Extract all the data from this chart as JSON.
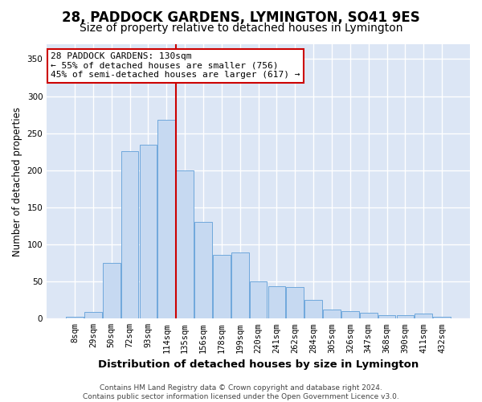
{
  "title": "28, PADDOCK GARDENS, LYMINGTON, SO41 9ES",
  "subtitle": "Size of property relative to detached houses in Lymington",
  "xlabel": "Distribution of detached houses by size in Lymington",
  "ylabel": "Number of detached properties",
  "bar_labels": [
    "8sqm",
    "29sqm",
    "50sqm",
    "72sqm",
    "93sqm",
    "114sqm",
    "135sqm",
    "156sqm",
    "178sqm",
    "199sqm",
    "220sqm",
    "241sqm",
    "262sqm",
    "284sqm",
    "305sqm",
    "326sqm",
    "347sqm",
    "368sqm",
    "390sqm",
    "411sqm",
    "432sqm"
  ],
  "bar_values": [
    2,
    9,
    75,
    226,
    234,
    268,
    200,
    130,
    86,
    89,
    50,
    44,
    43,
    25,
    12,
    10,
    8,
    5,
    5,
    7,
    2
  ],
  "bar_color": "#c6d9f1",
  "bar_edge_color": "#6fa8dc",
  "vline_color": "#cc0000",
  "vline_index": 6,
  "annotation_line1": "28 PADDOCK GARDENS: 130sqm",
  "annotation_line2": "← 55% of detached houses are smaller (756)",
  "annotation_line3": "45% of semi-detached houses are larger (617) →",
  "annotation_box_color": "#ffffff",
  "annotation_box_edge": "#cc0000",
  "ylim": [
    0,
    370
  ],
  "yticks": [
    0,
    50,
    100,
    150,
    200,
    250,
    300,
    350
  ],
  "background_color": "#ffffff",
  "plot_bg_color": "#dce6f5",
  "grid_color": "#ffffff",
  "footer": "Contains HM Land Registry data © Crown copyright and database right 2024.\nContains public sector information licensed under the Open Government Licence v3.0.",
  "title_fontsize": 12,
  "subtitle_fontsize": 10,
  "xlabel_fontsize": 9.5,
  "ylabel_fontsize": 8.5,
  "tick_fontsize": 7.5,
  "annotation_fontsize": 8,
  "footer_fontsize": 6.5
}
